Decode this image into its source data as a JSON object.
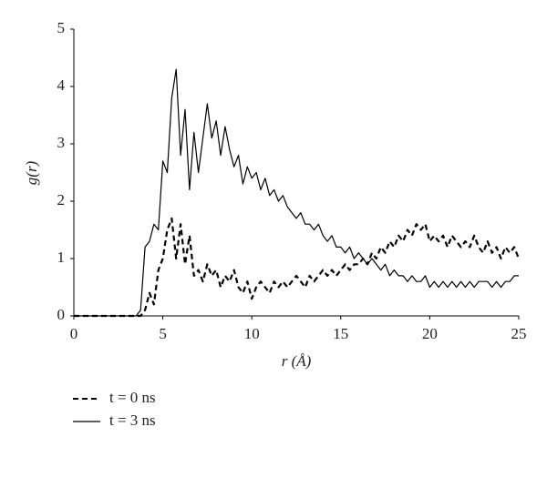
{
  "chart_data": {
    "type": "line",
    "x_label": "r (Å)",
    "y_label": "g(r)",
    "x": [
      0,
      3.5,
      3.75,
      4,
      4.25,
      4.5,
      4.75,
      5,
      5.25,
      5.5,
      5.75,
      6,
      6.25,
      6.5,
      6.75,
      7,
      7.25,
      7.5,
      7.75,
      8,
      8.25,
      8.5,
      8.75,
      9,
      9.25,
      9.5,
      9.75,
      10,
      10.25,
      10.5,
      10.75,
      11,
      11.25,
      11.5,
      11.75,
      12,
      12.25,
      12.5,
      12.75,
      13,
      13.25,
      13.5,
      13.75,
      14,
      14.25,
      14.5,
      14.75,
      15,
      15.25,
      15.5,
      15.75,
      16,
      16.25,
      16.5,
      16.75,
      17,
      17.25,
      17.5,
      17.75,
      18,
      18.25,
      18.5,
      18.75,
      19,
      19.25,
      19.5,
      19.75,
      20,
      20.25,
      20.5,
      20.75,
      21,
      21.25,
      21.5,
      21.75,
      22,
      22.25,
      22.5,
      22.75,
      23,
      23.25,
      23.5,
      23.75,
      24,
      24.25,
      24.5,
      24.75,
      25
    ],
    "series": [
      {
        "name": "t = 0 ns",
        "color": "#000000",
        "line_style": "dashed",
        "values": [
          0,
          0,
          0,
          0.1,
          0.4,
          0.2,
          0.8,
          1.0,
          1.5,
          1.7,
          1.0,
          1.6,
          0.9,
          1.4,
          0.7,
          0.8,
          0.6,
          0.9,
          0.7,
          0.8,
          0.5,
          0.7,
          0.6,
          0.8,
          0.5,
          0.4,
          0.6,
          0.3,
          0.5,
          0.6,
          0.5,
          0.4,
          0.6,
          0.5,
          0.6,
          0.5,
          0.6,
          0.7,
          0.6,
          0.5,
          0.7,
          0.6,
          0.7,
          0.8,
          0.7,
          0.8,
          0.7,
          0.8,
          0.9,
          0.8,
          0.9,
          0.9,
          1.0,
          0.9,
          1.1,
          1.0,
          1.2,
          1.1,
          1.3,
          1.2,
          1.4,
          1.3,
          1.5,
          1.4,
          1.6,
          1.5,
          1.6,
          1.3,
          1.4,
          1.3,
          1.4,
          1.2,
          1.4,
          1.3,
          1.2,
          1.3,
          1.2,
          1.4,
          1.2,
          1.1,
          1.3,
          1.1,
          1.2,
          1.0,
          1.2,
          1.1,
          1.2,
          1.0
        ]
      },
      {
        "name": "t = 3 ns",
        "color": "#000000",
        "line_style": "solid",
        "values": [
          0,
          0,
          0.1,
          1.2,
          1.3,
          1.6,
          1.5,
          2.7,
          2.5,
          3.8,
          4.3,
          2.8,
          3.6,
          2.2,
          3.2,
          2.5,
          3.1,
          3.7,
          3.1,
          3.4,
          2.8,
          3.3,
          2.9,
          2.6,
          2.8,
          2.3,
          2.6,
          2.4,
          2.5,
          2.2,
          2.4,
          2.1,
          2.2,
          2.0,
          2.1,
          1.9,
          1.8,
          1.7,
          1.8,
          1.6,
          1.6,
          1.5,
          1.6,
          1.4,
          1.3,
          1.4,
          1.2,
          1.2,
          1.1,
          1.2,
          1.0,
          1.1,
          1.0,
          0.9,
          1.0,
          0.9,
          0.8,
          0.9,
          0.7,
          0.8,
          0.7,
          0.7,
          0.6,
          0.7,
          0.6,
          0.6,
          0.7,
          0.5,
          0.6,
          0.5,
          0.6,
          0.5,
          0.6,
          0.5,
          0.6,
          0.5,
          0.6,
          0.5,
          0.6,
          0.6,
          0.6,
          0.5,
          0.6,
          0.5,
          0.6,
          0.6,
          0.7,
          0.7
        ]
      }
    ],
    "xlim": [
      0,
      25
    ],
    "xticks": [
      0,
      5,
      10,
      15,
      20,
      25
    ],
    "ylim": [
      0,
      5
    ],
    "yticks": [
      0,
      1,
      2,
      3,
      4,
      5
    ],
    "grid": false
  }
}
